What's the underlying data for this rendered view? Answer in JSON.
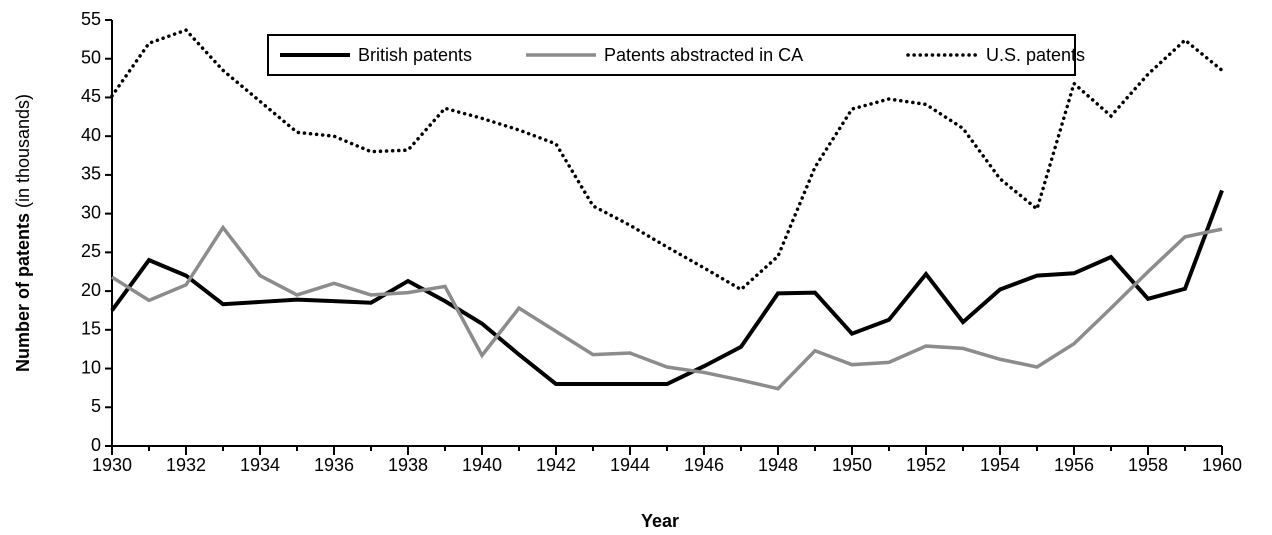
{
  "chart_data": {
    "type": "line",
    "xlabel": "Year",
    "ylabel": [
      "Number of patents",
      "(in thousands)"
    ],
    "x": [
      1930,
      1931,
      1932,
      1933,
      1934,
      1935,
      1936,
      1937,
      1938,
      1939,
      1940,
      1941,
      1942,
      1943,
      1944,
      1945,
      1946,
      1947,
      1948,
      1949,
      1950,
      1951,
      1952,
      1953,
      1954,
      1955,
      1956,
      1957,
      1958,
      1959,
      1960
    ],
    "series": [
      {
        "name": "British patents",
        "color": "#000000",
        "dash": "solid",
        "values": [
          17.5,
          24,
          22,
          18.3,
          18.6,
          18.9,
          18.7,
          18.5,
          21.3,
          18.7,
          15.8,
          11.8,
          8,
          8,
          8,
          8,
          10.3,
          12.8,
          19.7,
          19.8,
          14.5,
          16.3,
          22.2,
          16,
          20.2,
          22,
          22.3,
          24.4,
          19,
          20.3,
          33
        ]
      },
      {
        "name": "Patents abstracted in CA",
        "color": "#8c8c8c",
        "dash": "solid",
        "values": [
          21.8,
          18.8,
          20.8,
          28.2,
          22,
          19.5,
          21,
          19.5,
          19.8,
          20.6,
          11.7,
          17.8,
          14.8,
          11.8,
          12,
          10.2,
          9.5,
          8.5,
          7.4,
          12.3,
          10.5,
          10.8,
          12.9,
          12.6,
          11.2,
          10.2,
          13.2,
          17.8,
          22.5,
          27,
          28
        ]
      },
      {
        "name": "U.S. patents",
        "color": "#000000",
        "dash": "dotted",
        "values": [
          45.2,
          52,
          53.7,
          48.5,
          44.5,
          40.5,
          40,
          38,
          38.2,
          43.6,
          42.3,
          40.8,
          39,
          31,
          28.5,
          25.7,
          23,
          20.2,
          24.5,
          36,
          43.5,
          44.8,
          44.1,
          41,
          34.5,
          30.6,
          46.8,
          42.6,
          48,
          52.4,
          48.5
        ]
      }
    ],
    "xlim": [
      1930,
      1960
    ],
    "xticks": [
      1930,
      1932,
      1934,
      1936,
      1938,
      1940,
      1942,
      1944,
      1946,
      1948,
      1950,
      1952,
      1954,
      1956,
      1958,
      1960
    ],
    "ylim": [
      0,
      55
    ],
    "yticks": [
      0,
      5,
      10,
      15,
      20,
      25,
      30,
      35,
      40,
      45,
      50,
      55
    ],
    "legend": "top"
  }
}
